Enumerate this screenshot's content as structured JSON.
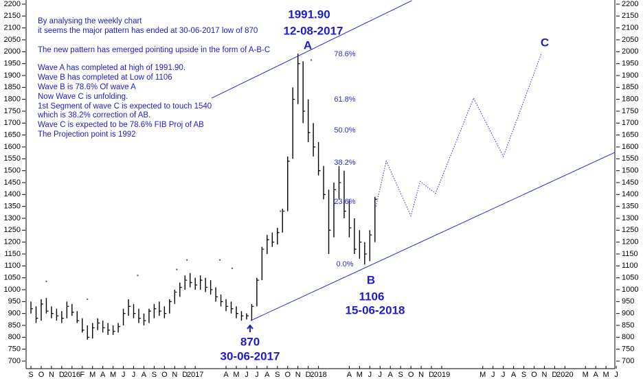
{
  "chart_data": {
    "type": "hlc",
    "color": "#000000",
    "line_color": "#2626d9",
    "xlim": [
      -0.47,
      56.86
    ],
    "ylim": [
      700,
      2200
    ],
    "yticks": [
      700,
      750,
      800,
      850,
      900,
      950,
      1000,
      1050,
      1100,
      1150,
      1200,
      1250,
      1300,
      1350,
      1400,
      1450,
      1500,
      1550,
      1600,
      1650,
      1700,
      1750,
      1800,
      1850,
      1900,
      1950,
      2000,
      2050,
      2100,
      2150,
      2200
    ],
    "xticks": [
      {
        "value": 0,
        "label": "S"
      },
      {
        "value": 1,
        "label": "O"
      },
      {
        "value": 2,
        "label": "N"
      },
      {
        "value": 3,
        "label": "D"
      },
      {
        "value": 4,
        "label": "2016"
      },
      {
        "value": 5,
        "label": "F"
      },
      {
        "value": 6,
        "label": "M"
      },
      {
        "value": 7,
        "label": "A"
      },
      {
        "value": 8,
        "label": "M"
      },
      {
        "value": 9,
        "label": "J"
      },
      {
        "value": 10,
        "label": "J"
      },
      {
        "value": 11,
        "label": "A"
      },
      {
        "value": 12,
        "label": "S"
      },
      {
        "value": 13,
        "label": "O"
      },
      {
        "value": 14,
        "label": "N"
      },
      {
        "value": 15,
        "label": "D"
      },
      {
        "value": 16,
        "label": "2017"
      },
      {
        "value": 19,
        "label": "A"
      },
      {
        "value": 20,
        "label": "M"
      },
      {
        "value": 21,
        "label": "J"
      },
      {
        "value": 22,
        "label": "J"
      },
      {
        "value": 23,
        "label": "A"
      },
      {
        "value": 24,
        "label": "S"
      },
      {
        "value": 25,
        "label": "O"
      },
      {
        "value": 26,
        "label": "N"
      },
      {
        "value": 27,
        "label": "D"
      },
      {
        "value": 28,
        "label": "2018"
      },
      {
        "value": 31,
        "label": "A"
      },
      {
        "value": 32,
        "label": "M"
      },
      {
        "value": 33,
        "label": "J"
      },
      {
        "value": 34,
        "label": "J"
      },
      {
        "value": 35,
        "label": "A"
      },
      {
        "value": 36,
        "label": "S"
      },
      {
        "value": 37,
        "label": "O"
      },
      {
        "value": 38,
        "label": "N"
      },
      {
        "value": 39,
        "label": "D"
      },
      {
        "value": 40,
        "label": "2019"
      },
      {
        "value": 44,
        "label": "M"
      },
      {
        "value": 45,
        "label": "J"
      },
      {
        "value": 46,
        "label": "J"
      },
      {
        "value": 47,
        "label": "A"
      },
      {
        "value": 48,
        "label": "S"
      },
      {
        "value": 49,
        "label": "O"
      },
      {
        "value": 50,
        "label": "N"
      },
      {
        "value": 51,
        "label": "D"
      },
      {
        "value": 52,
        "label": "2020"
      },
      {
        "value": 54,
        "label": "M"
      },
      {
        "value": 55,
        "label": "A"
      },
      {
        "value": 56,
        "label": "M"
      },
      {
        "value": 57,
        "label": "J"
      }
    ],
    "x": [
      0,
      0.5,
      1,
      1.5,
      2,
      2.5,
      3,
      3.5,
      4,
      4.5,
      5,
      5.5,
      6,
      6.5,
      7,
      7.5,
      8,
      8.5,
      9,
      9.5,
      10,
      10.5,
      11,
      11.5,
      12,
      12.5,
      13,
      13.5,
      14,
      14.5,
      15,
      15.5,
      16,
      16.5,
      17,
      17.5,
      18,
      18.5,
      19,
      19.5,
      20,
      20.5,
      21,
      21.5,
      22,
      22.5,
      23,
      23.5,
      24,
      24.5,
      25,
      25.5,
      26,
      26.5,
      27,
      27.5,
      28,
      28.5,
      29,
      29.5,
      30,
      30.5,
      31,
      31.5,
      32,
      32.5,
      33,
      33.5
    ],
    "high": [
      950,
      930,
      960,
      965,
      930,
      920,
      910,
      950,
      940,
      910,
      880,
      850,
      860,
      880,
      870,
      860,
      850,
      860,
      920,
      960,
      940,
      920,
      900,
      920,
      940,
      950,
      930,
      960,
      1000,
      1030,
      1060,
      1070,
      1050,
      1060,
      1050,
      1040,
      1010,
      980,
      960,
      950,
      930,
      910,
      900,
      940,
      1050,
      1180,
      1230,
      1240,
      1260,
      1340,
      1560,
      1850,
      1991.9,
      1960,
      1800,
      1700,
      1620,
      1520,
      1420,
      1450,
      1520,
      1500,
      1380,
      1300,
      1250,
      1200,
      1250,
      1390
    ],
    "low": [
      900,
      860,
      870,
      900,
      880,
      870,
      860,
      880,
      890,
      860,
      820,
      790,
      795,
      830,
      820,
      810,
      810,
      820,
      850,
      890,
      880,
      860,
      850,
      860,
      880,
      890,
      880,
      900,
      940,
      970,
      1000,
      1010,
      1000,
      1000,
      990,
      980,
      950,
      930,
      910,
      900,
      880,
      870,
      875,
      870,
      930,
      1040,
      1150,
      1180,
      1190,
      1240,
      1330,
      1550,
      1780,
      1700,
      1620,
      1560,
      1480,
      1380,
      1150,
      1220,
      1380,
      1300,
      1220,
      1150,
      1130,
      1106,
      1120,
      1200
    ],
    "close": [
      920,
      880,
      940,
      910,
      900,
      890,
      880,
      930,
      905,
      870,
      830,
      800,
      840,
      860,
      840,
      830,
      825,
      845,
      900,
      930,
      900,
      880,
      870,
      910,
      920,
      910,
      900,
      950,
      990,
      1010,
      1040,
      1030,
      1020,
      1040,
      1010,
      1000,
      970,
      950,
      930,
      920,
      900,
      890,
      890,
      930,
      1040,
      1170,
      1210,
      1200,
      1240,
      1330,
      1540,
      1800,
      1950,
      1750,
      1660,
      1600,
      1500,
      1400,
      1250,
      1420,
      1450,
      1330,
      1260,
      1170,
      1200,
      1150,
      1230,
      1380
    ],
    "markers": {
      "x": [
        1.5,
        5.5,
        10.4,
        14.2,
        15.2,
        18.4,
        19.6,
        24.3,
        27.3
      ],
      "y": [
        1035,
        960,
        1060,
        1085,
        1125,
        1125,
        1090,
        1330,
        1965
      ]
    },
    "trendlines": [
      {
        "x": [
          17.6,
          37.1
        ],
        "y": [
          1805,
          2215
        ]
      },
      {
        "x": [
          21.4,
          56.86
        ],
        "y": [
          870,
          1577
        ]
      }
    ],
    "projection": {
      "x": [
        33.6,
        34.6,
        37.0,
        37.9,
        39.4,
        43.1,
        46.0,
        49.7
      ],
      "y": [
        1350,
        1540,
        1310,
        1455,
        1405,
        1805,
        1560,
        1992
      ]
    },
    "fib_levels": [
      {
        "value": 1989,
        "label": "78.6%"
      },
      {
        "value": 1799,
        "label": "61.8%"
      },
      {
        "value": 1669,
        "label": "50.0%"
      },
      {
        "value": 1534,
        "label": "38.2%"
      },
      {
        "value": 1369,
        "label": "23.6%"
      },
      {
        "value": 1106,
        "label": "0.0%"
      }
    ],
    "notes": [
      "By analysing the weekly chart",
      "it seems the major pattern  has ended at 30-06-2017 low of 870",
      "The new pattern has emerged pointing upside in the form of A-B-C",
      "Wave A has completed at high of 1991.90.",
      "Wave B has completed at Low of 1106",
      "Wave B is 78.6% Of wave A",
      "Now Wave C is unfolding.",
      "1st Segment of wave C is expected to touch 1540",
      "which is 38.2% correction of AB.",
      "Wave C is expected to be 78.6% FIB Proj of AB",
      "The Projection point is 1992"
    ],
    "labels": {
      "a_price": "1991.90",
      "a_date": "12-08-2017",
      "a": "A",
      "b": "B",
      "b_price": "1106",
      "b_date": "15-06-2018",
      "start_price": "870",
      "start_date": "30-06-2017",
      "c": "C"
    }
  }
}
